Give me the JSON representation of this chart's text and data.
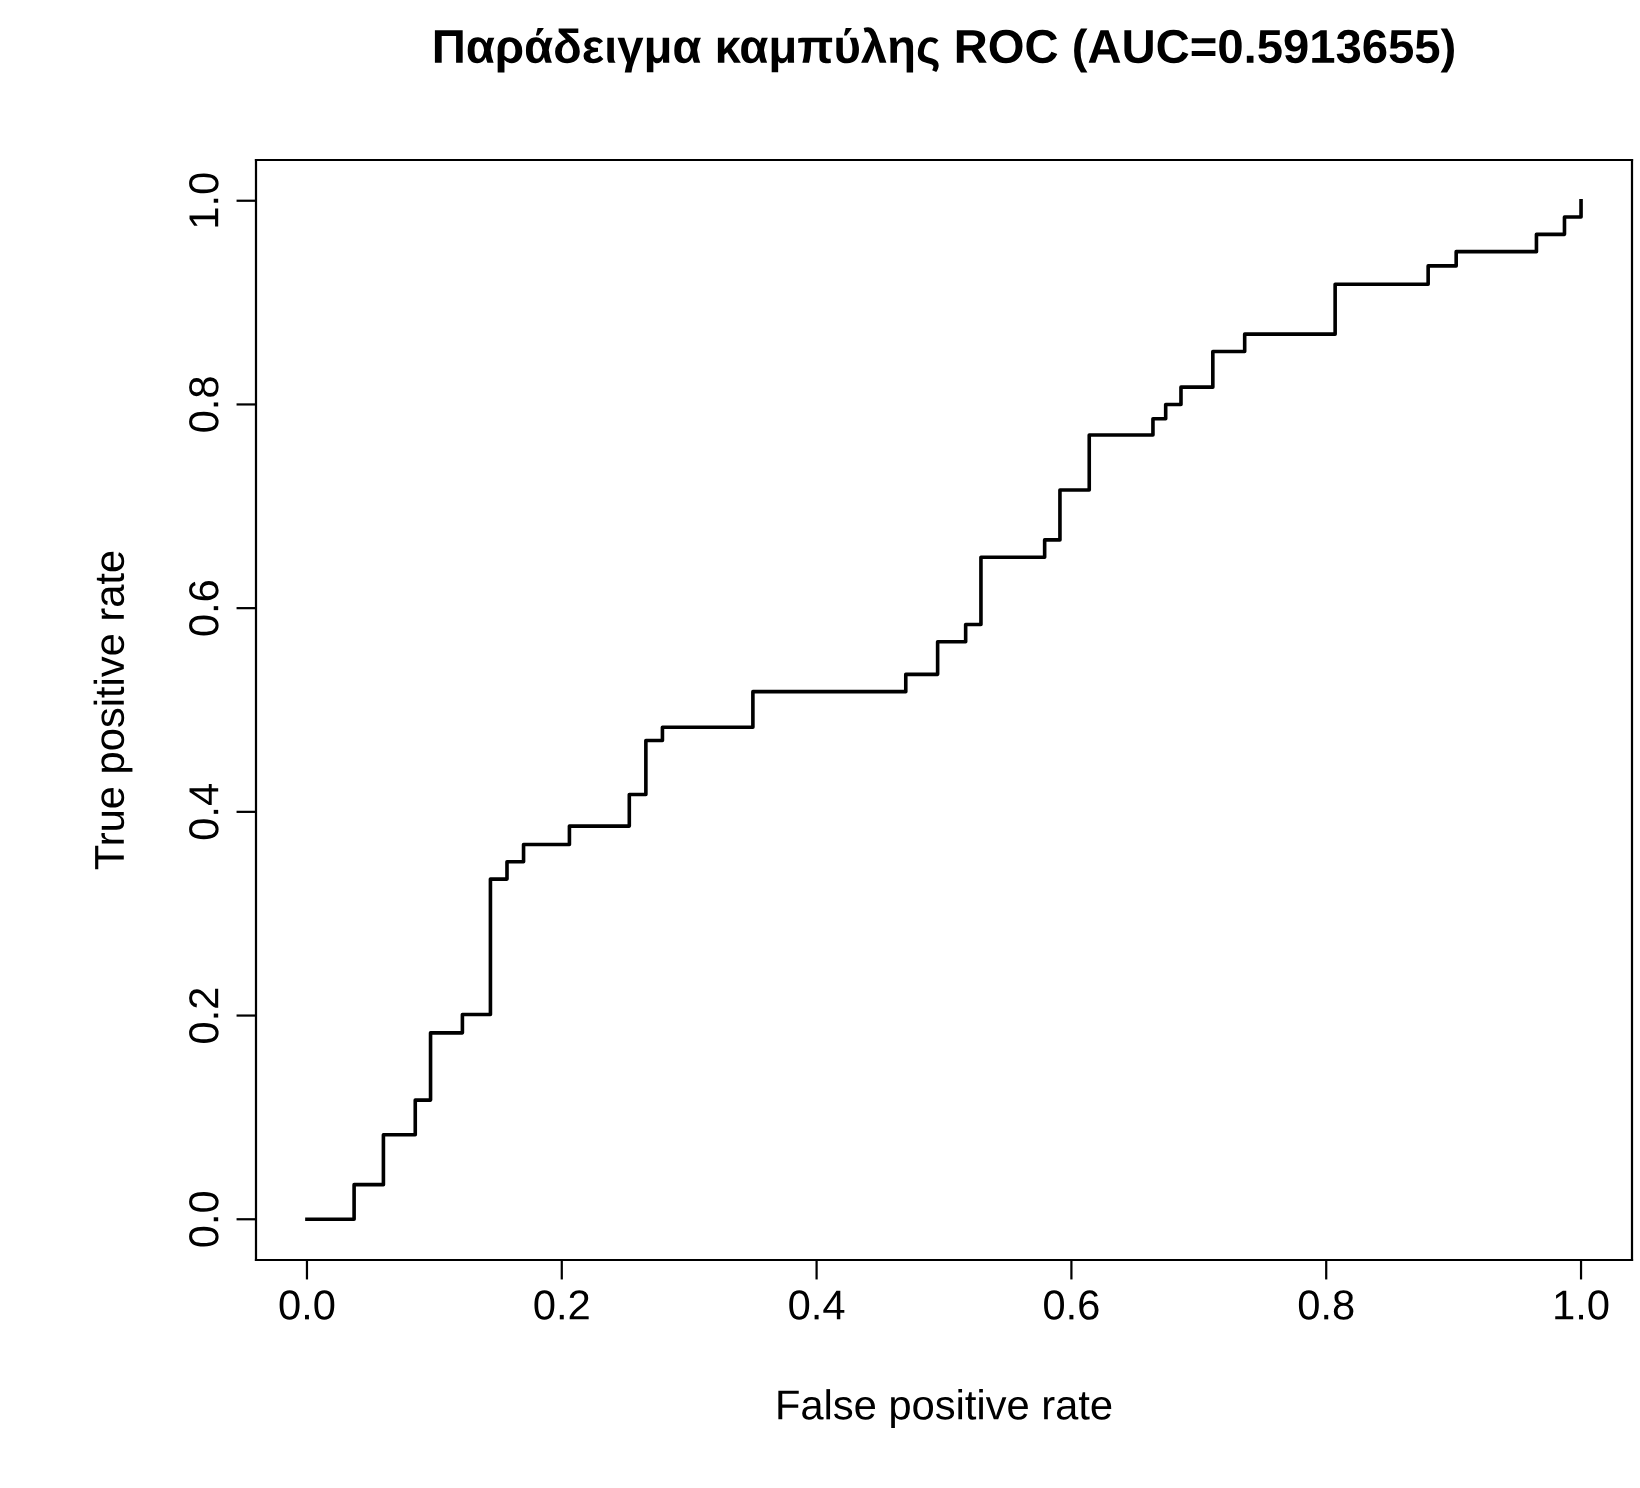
{
  "chart_data": {
    "type": "step",
    "title": "Παράδειγμα καμπύλης ROC (AUC=0.5913655)",
    "xlabel": "False positive rate",
    "ylabel": "True positive rate",
    "x": [
      0,
      0.037,
      0.06,
      0.085,
      0.097,
      0.122,
      0.144,
      0.157,
      0.17,
      0.206,
      0.253,
      0.266,
      0.279,
      0.35,
      0.47,
      0.495,
      0.517,
      0.529,
      0.579,
      0.591,
      0.614,
      0.664,
      0.674,
      0.686,
      0.711,
      0.736,
      0.807,
      0.88,
      0.902,
      0.965,
      0.987,
      1.0
    ],
    "series": [
      {
        "color": "#000000",
        "values": [
          0,
          0.034,
          0.083,
          0.117,
          0.183,
          0.201,
          0.334,
          0.351,
          0.368,
          0.386,
          0.417,
          0.47,
          0.483,
          0.518,
          0.535,
          0.567,
          0.584,
          0.65,
          0.667,
          0.716,
          0.77,
          0.786,
          0.8,
          0.817,
          0.852,
          0.869,
          0.918,
          0.936,
          0.95,
          0.967,
          0.984,
          1.0
        ]
      }
    ],
    "xlim": [
      -0.04,
      1.04
    ],
    "ylim": [
      -0.04,
      1.04
    ],
    "xticks": [
      {
        "value": 0,
        "label": "0.0"
      },
      0.2,
      0.4,
      0.6,
      0.8,
      {
        "value": 1,
        "label": "1.0"
      }
    ],
    "yticks": [
      {
        "value": 0,
        "label": "0.0"
      },
      0.2,
      0.4,
      0.6,
      0.8,
      {
        "value": 1,
        "label": "1.0"
      }
    ],
    "grid": false,
    "legend": false,
    "marker": "none",
    "line_style": "solid"
  }
}
